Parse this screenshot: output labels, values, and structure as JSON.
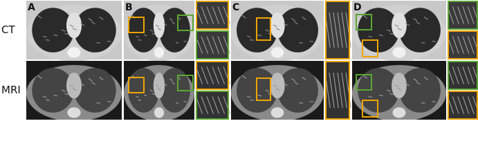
{
  "rows": [
    {
      "label": "CT"
    },
    {
      "label": "MRI"
    }
  ],
  "panels": [
    {
      "label": "A"
    },
    {
      "label": "B"
    },
    {
      "label": "C"
    },
    {
      "label": "D"
    }
  ]
}
